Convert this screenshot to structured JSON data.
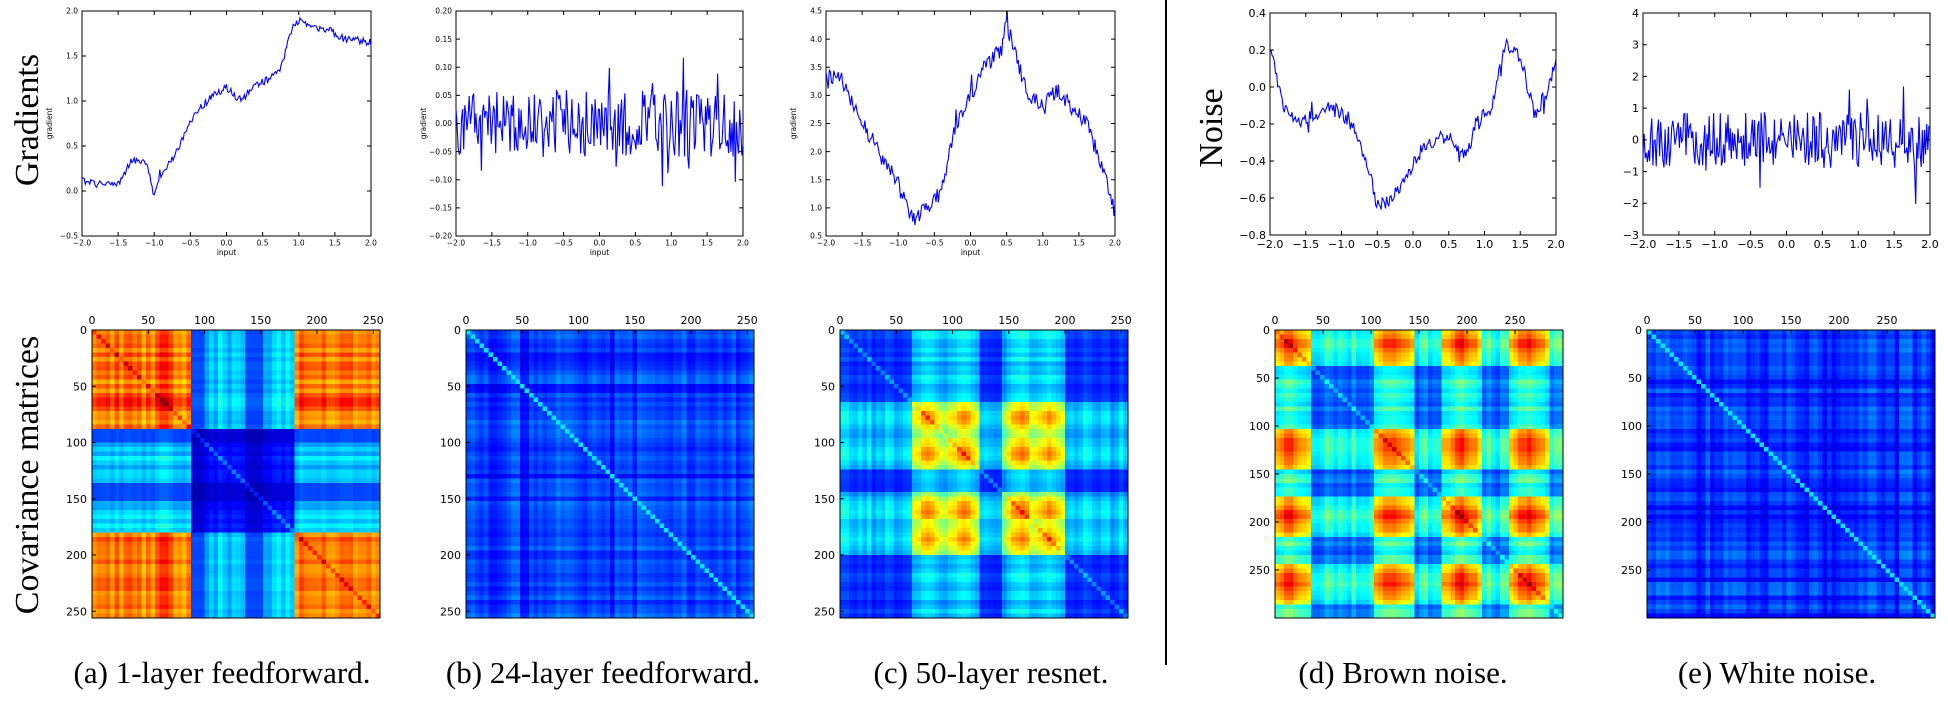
{
  "row_labels": [
    "Gradients",
    "Covariance matrices"
  ],
  "noise_row_label": "Noise",
  "captions": [
    "(a) 1-layer feedforward.",
    "(b) 24-layer feedforward.",
    "(c) 50-layer resnet.",
    "(d) Brown noise.",
    "(e) White noise."
  ],
  "chart_data": [
    {
      "type": "line",
      "panel": "a",
      "xlabel": "input",
      "ylabel": "gradient",
      "xlim": [
        -2.0,
        2.0
      ],
      "ylim": [
        -0.5,
        2.0
      ],
      "x_ticks": [
        "-2.0",
        "-1.5",
        "-1.0",
        "-0.5",
        "0.0",
        "0.5",
        "1.0",
        "1.5",
        "2.0"
      ],
      "y_ticks": [
        "-0.5",
        "0.0",
        "0.5",
        "1.0",
        "1.5",
        "2.0"
      ],
      "anchors": [
        [
          -2.0,
          0.12
        ],
        [
          -1.8,
          0.08
        ],
        [
          -1.5,
          0.08
        ],
        [
          -1.3,
          0.35
        ],
        [
          -1.1,
          0.3
        ],
        [
          -1.0,
          -0.05
        ],
        [
          -0.9,
          0.2
        ],
        [
          -0.75,
          0.35
        ],
        [
          -0.6,
          0.6
        ],
        [
          -0.4,
          0.9
        ],
        [
          -0.2,
          1.05
        ],
        [
          0.0,
          1.15
        ],
        [
          0.2,
          1.0
        ],
        [
          0.35,
          1.15
        ],
        [
          0.6,
          1.25
        ],
        [
          0.75,
          1.35
        ],
        [
          0.9,
          1.8
        ],
        [
          1.0,
          1.9
        ],
        [
          1.2,
          1.82
        ],
        [
          1.4,
          1.8
        ],
        [
          1.6,
          1.7
        ],
        [
          1.8,
          1.68
        ],
        [
          2.0,
          1.65
        ]
      ],
      "noise": 0.04
    },
    {
      "type": "line",
      "panel": "b",
      "xlabel": "input",
      "ylabel": "gradient",
      "xlim": [
        -2.0,
        2.0
      ],
      "ylim": [
        -0.2,
        0.2
      ],
      "x_ticks": [
        "-2.0",
        "-1.5",
        "-1.0",
        "-0.5",
        "0.0",
        "0.5",
        "1.0",
        "1.5",
        "2.0"
      ],
      "y_ticks": [
        "-0.20",
        "-0.15",
        "-0.10",
        "-0.05",
        "0.00",
        "0.05",
        "0.10",
        "0.15",
        "0.20"
      ],
      "anchors": [
        [
          -2.0,
          0.0
        ],
        [
          2.0,
          0.0
        ]
      ],
      "noise": 0.06
    },
    {
      "type": "line",
      "panel": "c",
      "xlabel": "input",
      "ylabel": "gradient",
      "xlim": [
        -2.0,
        2.0
      ],
      "ylim": [
        0.5,
        4.5
      ],
      "x_ticks": [
        "-2.0",
        "-1.5",
        "-1.0",
        "-0.5",
        "0.0",
        "0.5",
        "1.0",
        "1.5",
        "2.0"
      ],
      "y_ticks": [
        "0.5",
        "1.0",
        "1.5",
        "2.0",
        "2.5",
        "3.0",
        "3.5",
        "4.0",
        "4.5"
      ],
      "anchors": [
        [
          -2.0,
          3.4
        ],
        [
          -1.8,
          3.3
        ],
        [
          -1.6,
          2.8
        ],
        [
          -1.4,
          2.3
        ],
        [
          -1.2,
          1.8
        ],
        [
          -1.0,
          1.5
        ],
        [
          -0.8,
          0.8
        ],
        [
          -0.6,
          1.0
        ],
        [
          -0.4,
          1.3
        ],
        [
          -0.2,
          2.5
        ],
        [
          0.0,
          3.0
        ],
        [
          0.2,
          3.5
        ],
        [
          0.4,
          3.8
        ],
        [
          0.5,
          4.3
        ],
        [
          0.6,
          3.8
        ],
        [
          0.8,
          3.0
        ],
        [
          1.0,
          2.8
        ],
        [
          1.2,
          3.1
        ],
        [
          1.4,
          2.8
        ],
        [
          1.6,
          2.5
        ],
        [
          1.8,
          1.8
        ],
        [
          2.0,
          1.0
        ]
      ],
      "noise": 0.15
    },
    {
      "type": "line",
      "panel": "d",
      "xlim": [
        -2.0,
        2.0
      ],
      "ylim": [
        -0.8,
        0.4
      ],
      "x_ticks": [
        "-2.0",
        "-1.5",
        "-1.0",
        "-0.5",
        "0.0",
        "0.5",
        "1.0",
        "1.5",
        "2.0"
      ],
      "y_ticks": [
        "-0.8",
        "-0.6",
        "-0.4",
        "-0.2",
        "0.0",
        "0.2",
        "0.4"
      ],
      "anchors": [
        [
          -2.0,
          0.2
        ],
        [
          -1.8,
          -0.1
        ],
        [
          -1.6,
          -0.2
        ],
        [
          -1.4,
          -0.15
        ],
        [
          -1.2,
          -0.1
        ],
        [
          -1.0,
          -0.15
        ],
        [
          -0.8,
          -0.25
        ],
        [
          -0.6,
          -0.45
        ],
        [
          -0.5,
          -0.65
        ],
        [
          -0.3,
          -0.6
        ],
        [
          -0.1,
          -0.5
        ],
        [
          0.1,
          -0.35
        ],
        [
          0.3,
          -0.3
        ],
        [
          0.5,
          -0.25
        ],
        [
          0.7,
          -0.4
        ],
        [
          0.9,
          -0.2
        ],
        [
          1.1,
          -0.1
        ],
        [
          1.3,
          0.25
        ],
        [
          1.5,
          0.15
        ],
        [
          1.7,
          -0.15
        ],
        [
          1.9,
          0.0
        ],
        [
          2.0,
          0.15
        ]
      ],
      "noise": 0.04
    },
    {
      "type": "line",
      "panel": "e",
      "xlim": [
        -2.0,
        2.0
      ],
      "ylim": [
        -3,
        4
      ],
      "x_ticks": [
        "-2.0",
        "-1.5",
        "-1.0",
        "-0.5",
        "0.0",
        "0.5",
        "1.0",
        "1.5",
        "2.0"
      ],
      "y_ticks": [
        "-3",
        "-2",
        "-1",
        "0",
        "1",
        "2",
        "3",
        "4"
      ],
      "anchors": [
        [
          -2.0,
          0.0
        ],
        [
          2.0,
          0.0
        ]
      ],
      "noise": 0.9
    },
    {
      "type": "heatmap",
      "panel": "a",
      "size": 256,
      "x_ticks": [
        0,
        50,
        100,
        150,
        200,
        250
      ],
      "y_ticks": [
        0,
        50,
        100,
        150,
        200,
        250
      ],
      "pattern": "blocks"
    },
    {
      "type": "heatmap",
      "panel": "b",
      "size": 256,
      "x_ticks": [
        0,
        50,
        100,
        150,
        200,
        250
      ],
      "y_ticks": [
        0,
        50,
        100,
        150,
        200,
        250
      ],
      "pattern": "white"
    },
    {
      "type": "heatmap",
      "panel": "c",
      "size": 256,
      "x_ticks": [
        0,
        50,
        100,
        150,
        200,
        250
      ],
      "y_ticks": [
        0,
        50,
        100,
        150,
        200,
        250
      ],
      "pattern": "resnet"
    },
    {
      "type": "heatmap",
      "panel": "d",
      "size": 300,
      "x_ticks": [
        0,
        50,
        100,
        150,
        200,
        250
      ],
      "y_ticks": [
        0,
        50,
        100,
        150,
        200,
        250
      ],
      "pattern": "brown"
    },
    {
      "type": "heatmap",
      "panel": "e",
      "size": 300,
      "x_ticks": [
        0,
        50,
        100,
        150,
        200,
        250
      ],
      "y_ticks": [
        0,
        50,
        100,
        150,
        200,
        250
      ],
      "pattern": "white"
    }
  ],
  "colors": {
    "line": "#0000ff",
    "divider": "#000000"
  }
}
